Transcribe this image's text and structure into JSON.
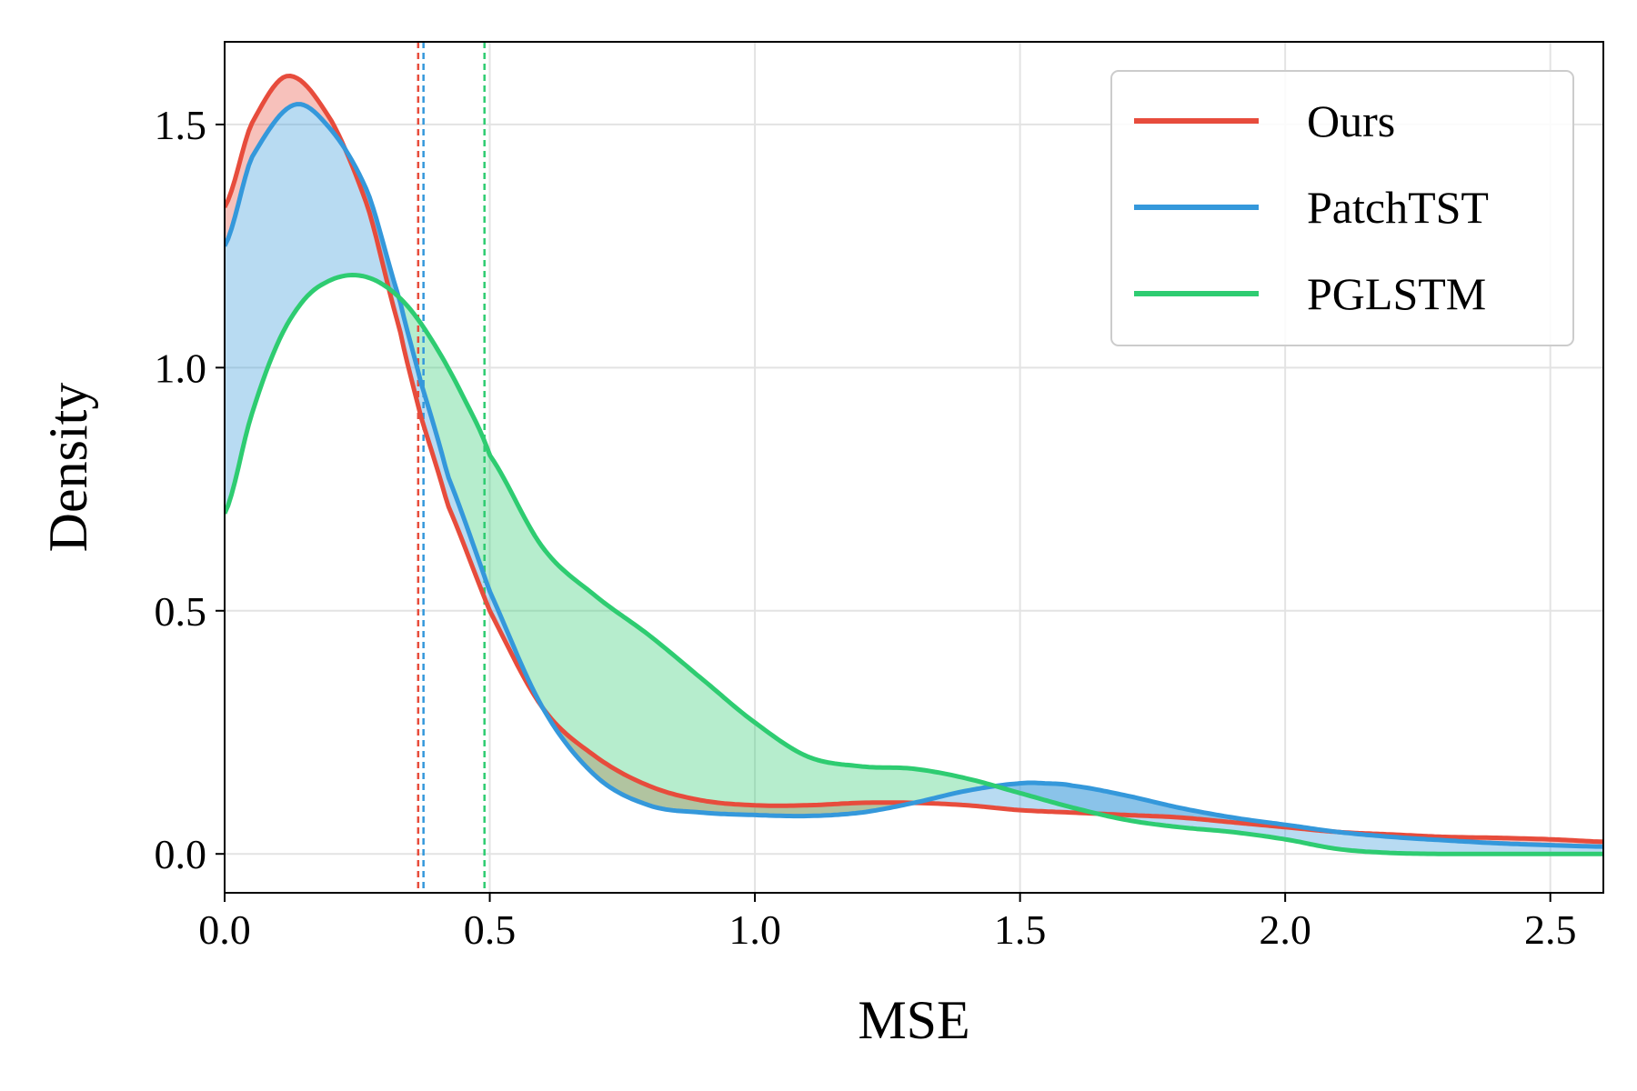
{
  "chart_data": {
    "type": "line",
    "subtype": "kde-density",
    "title": "",
    "xlabel": "MSE",
    "ylabel": "Density",
    "xlim": [
      0.0,
      2.6
    ],
    "ylim": [
      -0.08,
      1.67
    ],
    "grid": true,
    "legend_position": "top-right",
    "x_ticks": [
      "0.0",
      "0.5",
      "1.0",
      "1.5",
      "2.0",
      "2.5"
    ],
    "y_ticks": [
      "0.0",
      "0.5",
      "1.0",
      "1.5"
    ],
    "series": [
      {
        "name": "Ours",
        "color": "#e74c3c",
        "mean_line": 0.365,
        "points": [
          [
            0.0,
            1.33
          ],
          [
            0.05,
            1.5
          ],
          [
            0.12,
            1.6
          ],
          [
            0.2,
            1.51
          ],
          [
            0.27,
            1.33
          ],
          [
            0.33,
            1.08
          ],
          [
            0.37,
            0.9
          ],
          [
            0.42,
            0.72
          ],
          [
            0.5,
            0.5
          ],
          [
            0.6,
            0.3
          ],
          [
            0.7,
            0.2
          ],
          [
            0.8,
            0.14
          ],
          [
            0.9,
            0.11
          ],
          [
            1.0,
            0.1
          ],
          [
            1.1,
            0.1
          ],
          [
            1.2,
            0.105
          ],
          [
            1.3,
            0.105
          ],
          [
            1.4,
            0.1
          ],
          [
            1.5,
            0.09
          ],
          [
            1.6,
            0.085
          ],
          [
            1.7,
            0.08
          ],
          [
            1.8,
            0.075
          ],
          [
            1.9,
            0.065
          ],
          [
            2.0,
            0.055
          ],
          [
            2.1,
            0.045
          ],
          [
            2.2,
            0.04
          ],
          [
            2.3,
            0.035
          ],
          [
            2.4,
            0.033
          ],
          [
            2.5,
            0.03
          ],
          [
            2.6,
            0.025
          ]
        ]
      },
      {
        "name": "PatchTST",
        "color": "#3498db",
        "mean_line": 0.375,
        "points": [
          [
            0.0,
            1.25
          ],
          [
            0.05,
            1.43
          ],
          [
            0.13,
            1.54
          ],
          [
            0.2,
            1.49
          ],
          [
            0.27,
            1.36
          ],
          [
            0.33,
            1.14
          ],
          [
            0.37,
            0.97
          ],
          [
            0.42,
            0.78
          ],
          [
            0.5,
            0.54
          ],
          [
            0.6,
            0.3
          ],
          [
            0.7,
            0.16
          ],
          [
            0.8,
            0.1
          ],
          [
            0.9,
            0.085
          ],
          [
            1.0,
            0.08
          ],
          [
            1.1,
            0.078
          ],
          [
            1.2,
            0.085
          ],
          [
            1.3,
            0.105
          ],
          [
            1.4,
            0.13
          ],
          [
            1.5,
            0.145
          ],
          [
            1.55,
            0.145
          ],
          [
            1.6,
            0.14
          ],
          [
            1.7,
            0.12
          ],
          [
            1.8,
            0.095
          ],
          [
            1.9,
            0.075
          ],
          [
            2.0,
            0.06
          ],
          [
            2.1,
            0.045
          ],
          [
            2.2,
            0.035
          ],
          [
            2.3,
            0.028
          ],
          [
            2.4,
            0.022
          ],
          [
            2.5,
            0.018
          ],
          [
            2.6,
            0.015
          ]
        ]
      },
      {
        "name": "PGLSTM",
        "color": "#2ecc71",
        "mean_line": 0.49,
        "points": [
          [
            0.0,
            0.7
          ],
          [
            0.05,
            0.9
          ],
          [
            0.1,
            1.05
          ],
          [
            0.15,
            1.14
          ],
          [
            0.2,
            1.18
          ],
          [
            0.25,
            1.19
          ],
          [
            0.3,
            1.17
          ],
          [
            0.35,
            1.12
          ],
          [
            0.4,
            1.04
          ],
          [
            0.45,
            0.94
          ],
          [
            0.5,
            0.82
          ],
          [
            0.6,
            0.63
          ],
          [
            0.7,
            0.53
          ],
          [
            0.8,
            0.45
          ],
          [
            0.9,
            0.36
          ],
          [
            1.0,
            0.27
          ],
          [
            1.1,
            0.2
          ],
          [
            1.2,
            0.18
          ],
          [
            1.3,
            0.175
          ],
          [
            1.4,
            0.155
          ],
          [
            1.5,
            0.125
          ],
          [
            1.6,
            0.095
          ],
          [
            1.7,
            0.07
          ],
          [
            1.8,
            0.055
          ],
          [
            1.9,
            0.045
          ],
          [
            2.0,
            0.03
          ],
          [
            2.1,
            0.01
          ],
          [
            2.2,
            0.002
          ],
          [
            2.3,
            0.0
          ],
          [
            2.4,
            0.0
          ],
          [
            2.6,
            0.0
          ]
        ]
      }
    ]
  }
}
